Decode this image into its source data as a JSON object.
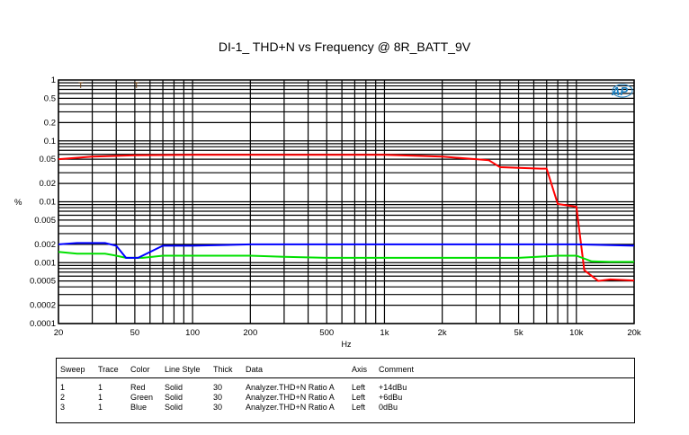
{
  "chart_data": {
    "type": "line",
    "title": "DI-1_ THD+N vs Frequency @ 8R_BATT_9V",
    "xlabel": "Hz",
    "ylabel": "%",
    "xscale": "log",
    "yscale": "log",
    "xlim": [
      20,
      20000
    ],
    "ylim": [
      0.0001,
      1
    ],
    "xticks": [
      {
        "v": 20,
        "l": "20"
      },
      {
        "v": 50,
        "l": "50"
      },
      {
        "v": 100,
        "l": "100"
      },
      {
        "v": 200,
        "l": "200"
      },
      {
        "v": 500,
        "l": "500"
      },
      {
        "v": 1000,
        "l": "1k"
      },
      {
        "v": 2000,
        "l": "2k"
      },
      {
        "v": 5000,
        "l": "5k"
      },
      {
        "v": 10000,
        "l": "10k"
      },
      {
        "v": 20000,
        "l": "20k"
      }
    ],
    "yticks": [
      {
        "v": 1,
        "l": "1"
      },
      {
        "v": 0.5,
        "l": "0.5"
      },
      {
        "v": 0.2,
        "l": "0.2"
      },
      {
        "v": 0.1,
        "l": "0.1"
      },
      {
        "v": 0.05,
        "l": "0.05"
      },
      {
        "v": 0.02,
        "l": "0.02"
      },
      {
        "v": 0.01,
        "l": "0.01"
      },
      {
        "v": 0.005,
        "l": "0.005"
      },
      {
        "v": 0.002,
        "l": "0.002"
      },
      {
        "v": 0.001,
        "l": "0.001"
      },
      {
        "v": 0.0005,
        "l": "0.0005"
      },
      {
        "v": 0.0002,
        "l": "0.0002"
      },
      {
        "v": 0.0001,
        "l": "0.0001"
      }
    ],
    "grid": true,
    "series": [
      {
        "name": "+14dBu",
        "color": "#ff0000",
        "x": [
          20,
          30,
          50,
          100,
          200,
          500,
          1000,
          2000,
          3000,
          3500,
          4000,
          6500,
          7000,
          8000,
          10000,
          11000,
          13000,
          15000,
          20000
        ],
        "y": [
          0.05,
          0.055,
          0.058,
          0.059,
          0.059,
          0.059,
          0.059,
          0.055,
          0.05,
          0.048,
          0.037,
          0.035,
          0.035,
          0.0092,
          0.0083,
          0.00075,
          0.0005,
          0.00053,
          0.00051
        ]
      },
      {
        "name": "+6dBu",
        "color": "#00e000",
        "x": [
          20,
          25,
          30,
          35,
          40,
          45,
          55,
          70,
          100,
          150,
          200,
          300,
          500,
          1000,
          2000,
          5000,
          8000,
          10000,
          12000,
          15000,
          20000
        ],
        "y": [
          0.0015,
          0.0014,
          0.0014,
          0.0014,
          0.0013,
          0.0012,
          0.0012,
          0.0013,
          0.0013,
          0.0013,
          0.0013,
          0.00125,
          0.0012,
          0.0012,
          0.0012,
          0.0012,
          0.0013,
          0.0013,
          0.00105,
          0.00103,
          0.00103
        ]
      },
      {
        "name": "0dBu",
        "color": "#0000ff",
        "x": [
          20,
          25,
          35,
          40,
          45,
          52,
          70,
          100,
          200,
          500,
          1000,
          2000,
          5000,
          10000,
          20000
        ],
        "y": [
          0.002,
          0.0021,
          0.0021,
          0.0019,
          0.0012,
          0.0012,
          0.0019,
          0.0019,
          0.002,
          0.002,
          0.002,
          0.002,
          0.002,
          0.002,
          0.0019
        ]
      }
    ]
  },
  "legend": {
    "headers": [
      "Sweep",
      "Trace",
      "Color",
      "Line Style",
      "Thick",
      "Data",
      "Axis",
      "Comment"
    ],
    "rows": [
      [
        "1",
        "1",
        "Red",
        "Solid",
        "30",
        "Analyzer.THD+N Ratio A",
        "Left",
        "+14dBu"
      ],
      [
        "2",
        "1",
        "Green",
        "Solid",
        "30",
        "Analyzer.THD+N Ratio A",
        "Left",
        "+6dBu"
      ],
      [
        "3",
        "1",
        "Blue",
        "Solid",
        "30",
        "Analyzer.THD+N Ratio A",
        "Left",
        "0dBu"
      ]
    ]
  },
  "logo": "AP"
}
